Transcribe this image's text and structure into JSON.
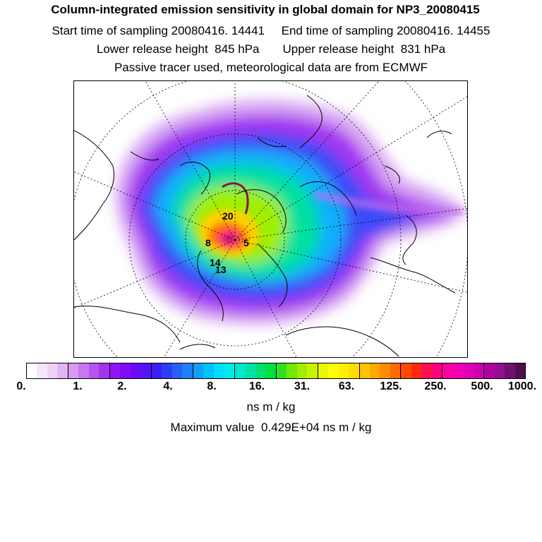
{
  "header": {
    "title": "Column-integrated emission sensitivity in global domain for NP3_20080415",
    "sampling": "Start time of sampling 20080416. 14441     End time of sampling 20080416. 14455",
    "release": "Lower release height  845 hPa       Upper release height  831 hPa",
    "tracer": "Passive tracer used, meteorological data are from ECMWF"
  },
  "map": {
    "projection": "polar stereographic, north pole",
    "release_labels": [
      "20",
      "8",
      "5",
      "14",
      "13"
    ]
  },
  "colorbar": {
    "tick_labels": [
      "0.",
      "1.",
      "2.",
      "4.",
      "8.",
      "16.",
      "31.",
      "63.",
      "125.",
      "250.",
      "500.",
      "1000."
    ],
    "colors": [
      "#ffffff",
      "#f6e6fb",
      "#eed0f7",
      "#e2b4f3",
      "#d79af0",
      "#c878ee",
      "#b456ee",
      "#a333f0",
      "#9214f3",
      "#7f0cf4",
      "#6a0bf4",
      "#5514f5",
      "#3a1ef6",
      "#2a3ef7",
      "#2a5ff8",
      "#1f80f9",
      "#10a0fb",
      "#00c0fc",
      "#00dcfb",
      "#00ecec",
      "#00ead0",
      "#00e2a8",
      "#00e070",
      "#00e040",
      "#30e020",
      "#70e800",
      "#a0ee00",
      "#c8f200",
      "#e8f800",
      "#ffff00",
      "#fff000",
      "#ffdc00",
      "#ffc400",
      "#ffa800",
      "#ff8c00",
      "#ff6a00",
      "#ff4800",
      "#ff2a10",
      "#ff1050",
      "#ff0080",
      "#ff00a0",
      "#f000b0",
      "#e000b8",
      "#cc00b0",
      "#b000a0",
      "#901090",
      "#701070",
      "#501050"
    ],
    "units": "ns m / kg",
    "maximum_text": "Maximum value  0.429E+04 ns m / kg"
  }
}
